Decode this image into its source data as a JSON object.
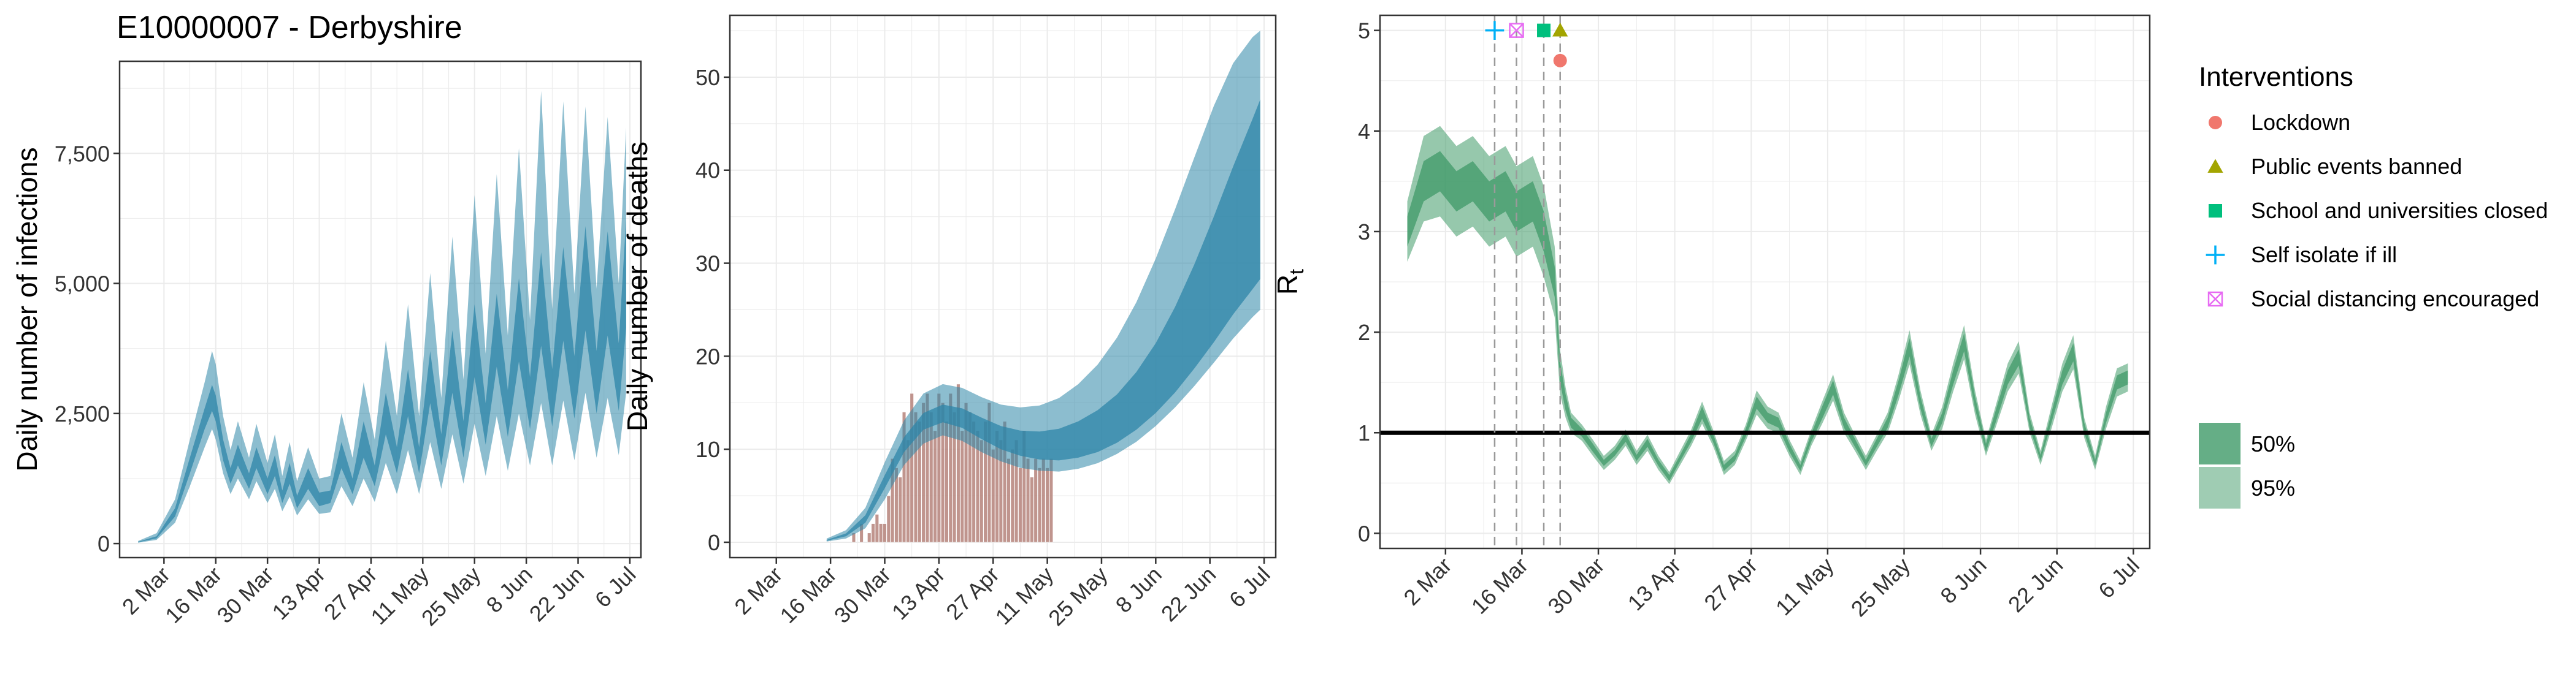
{
  "page_title": "E10000007 - Derbyshire",
  "colors": {
    "infections_fill": "#2e86a8",
    "deaths_fill": "#2e86a8",
    "deaths_bars": "#b5837a",
    "rt_fill": "#3f9a68",
    "intervention_lockdown": "#f0776d",
    "intervention_events": "#a3a500",
    "intervention_schools": "#00bf7d",
    "intervention_self_isolate": "#00b0f6",
    "intervention_social_distancing": "#e76bf3"
  },
  "legend": {
    "title": "Interventions",
    "items": [
      {
        "label": "Lockdown",
        "shape": "circle",
        "color_key": "intervention_lockdown"
      },
      {
        "label": "Public events banned",
        "shape": "triangle",
        "color_key": "intervention_events"
      },
      {
        "label": "School and universities closed",
        "shape": "square",
        "color_key": "intervention_schools"
      },
      {
        "label": "Self isolate if ill",
        "shape": "plus",
        "color_key": "intervention_self_isolate"
      },
      {
        "label": "Social distancing encouraged",
        "shape": "boxed-x",
        "color_key": "intervention_social_distancing"
      }
    ],
    "ci_items": [
      {
        "label": "50%"
      },
      {
        "label": "95%"
      }
    ]
  },
  "chart_data": [
    {
      "type": "area",
      "id": "infections",
      "title": "E10000007 - Derbyshire",
      "xlabel": "",
      "ylabel": "Daily number of infections",
      "xlim": [
        0,
        133
      ],
      "ylim": [
        0,
        9000
      ],
      "yticks": [
        0,
        2500,
        5000,
        7500
      ],
      "ytick_labels": [
        "0",
        "2,500",
        "5,000",
        "7,500"
      ],
      "xticks": [
        7,
        21,
        35,
        49,
        63,
        77,
        91,
        105,
        119,
        133
      ],
      "xtick_labels": [
        "2 Mar",
        "16 Mar",
        "30 Mar",
        "13 Apr",
        "27 Apr",
        "11 May",
        "25 May",
        "8 Jun",
        "22 Jun",
        "6 Jul"
      ],
      "grid": true,
      "x_note": "x = days from 24 Feb 2020",
      "band_x": [
        0,
        5,
        10,
        14,
        18,
        20,
        21,
        23,
        25,
        27,
        30,
        32,
        35,
        37,
        39,
        41,
        43,
        46,
        49,
        52,
        55,
        58,
        61,
        64,
        67,
        70,
        73,
        76,
        79,
        82,
        85,
        88,
        91,
        94,
        97,
        100,
        103,
        106,
        109,
        112,
        115,
        118,
        121,
        124,
        127,
        130,
        132
      ],
      "median": [
        30,
        120,
        600,
        1500,
        2400,
        2800,
        2600,
        1800,
        1300,
        1700,
        1200,
        1650,
        1100,
        1500,
        900,
        1350,
        800,
        1250,
        850,
        900,
        1700,
        1100,
        2000,
        1300,
        2500,
        1600,
        2900,
        1600,
        3200,
        1800,
        3500,
        2000,
        3900,
        2300,
        4100,
        2500,
        4300,
        2700,
        4700,
        2800,
        4800,
        3000,
        5100,
        3100,
        5000,
        3200,
        5200
      ],
      "q50_low": [
        25,
        100,
        520,
        1350,
        2200,
        2550,
        2350,
        1600,
        1150,
        1500,
        1050,
        1450,
        950,
        1300,
        780,
        1150,
        680,
        1050,
        720,
        780,
        1450,
        950,
        1650,
        1100,
        2100,
        1350,
        2450,
        1350,
        2700,
        1500,
        2900,
        1650,
        3200,
        1900,
        3400,
        2050,
        3500,
        2200,
        3800,
        2250,
        3900,
        2400,
        4100,
        2500,
        4000,
        2550,
        4150
      ],
      "q50_high": [
        35,
        140,
        680,
        1650,
        2600,
        3050,
        2850,
        2000,
        1450,
        1900,
        1350,
        1850,
        1250,
        1700,
        1020,
        1550,
        920,
        1450,
        980,
        1020,
        1950,
        1250,
        2350,
        1500,
        2900,
        1850,
        3350,
        1850,
        3700,
        2100,
        4100,
        2350,
        4600,
        2700,
        4800,
        2950,
        5100,
        3200,
        5600,
        3350,
        5700,
        3600,
        6100,
        3700,
        6000,
        3850,
        6250
      ],
      "q95_low": [
        15,
        70,
        400,
        1100,
        1850,
        2200,
        2000,
        1350,
        950,
        1250,
        850,
        1200,
        780,
        1050,
        620,
        900,
        540,
        850,
        570,
        600,
        1100,
        720,
        1250,
        800,
        1550,
        950,
        1800,
        950,
        1950,
        1050,
        2100,
        1150,
        2300,
        1300,
        2450,
        1400,
        2500,
        1500,
        2700,
        1500,
        2750,
        1600,
        2900,
        1650,
        2800,
        1700,
        2900
      ],
      "q95_high": [
        50,
        200,
        850,
        2000,
        3100,
        3700,
        3450,
        2450,
        1800,
        2350,
        1650,
        2300,
        1550,
        2100,
        1300,
        1950,
        1200,
        1850,
        1250,
        1300,
        2500,
        1650,
        3100,
        2000,
        3900,
        2450,
        4600,
        2450,
        5200,
        2800,
        5900,
        3150,
        6700,
        3650,
        7100,
        4000,
        7600,
        4300,
        8700,
        4500,
        8500,
        4800,
        8400,
        4900,
        8200,
        5000,
        8000
      ]
    },
    {
      "type": "bar",
      "id": "deaths",
      "xlabel": "",
      "ylabel": "Daily number of deaths",
      "xlim": [
        0,
        133
      ],
      "ylim": [
        0,
        55
      ],
      "yticks": [
        0,
        10,
        20,
        30,
        40,
        50
      ],
      "ytick_labels": [
        "0",
        "10",
        "20",
        "30",
        "40",
        "50"
      ],
      "xticks": [
        7,
        21,
        35,
        49,
        63,
        77,
        91,
        105,
        119,
        133
      ],
      "xtick_labels": [
        "2 Mar",
        "16 Mar",
        "30 Mar",
        "13 Apr",
        "27 Apr",
        "11 May",
        "25 May",
        "8 Jun",
        "22 Jun",
        "6 Jul"
      ],
      "grid": true,
      "x_note": "x = days from 24 Feb 2020",
      "bars_x": [
        27,
        28,
        29,
        30,
        31,
        32,
        33,
        34,
        35,
        36,
        37,
        38,
        39,
        40,
        41,
        42,
        43,
        44,
        45,
        46,
        47,
        48,
        49,
        50,
        51,
        52,
        53,
        54,
        55,
        56,
        57,
        58,
        59,
        60,
        61,
        62,
        63,
        64,
        65,
        66,
        67,
        68,
        69,
        70,
        71,
        72,
        73,
        74,
        75,
        76,
        77,
        78
      ],
      "bars": [
        1,
        0,
        2,
        0,
        1,
        2,
        3,
        2,
        2,
        5,
        9,
        8,
        7,
        14,
        11,
        16,
        14,
        13,
        15,
        16,
        14,
        12,
        16,
        15,
        13,
        16,
        14,
        17,
        12,
        15,
        14,
        13,
        12,
        11,
        13,
        15,
        10,
        12,
        11,
        13,
        9,
        10,
        11,
        8,
        12,
        9,
        7,
        9,
        8,
        9,
        8,
        9
      ],
      "band_x": [
        20,
        25,
        30,
        35,
        40,
        45,
        50,
        55,
        60,
        65,
        70,
        75,
        80,
        85,
        90,
        95,
        100,
        105,
        110,
        115,
        120,
        125,
        130,
        132
      ],
      "median": [
        0.2,
        0.8,
        2.5,
        6.5,
        10.5,
        13,
        13.8,
        13.3,
        12.2,
        11.2,
        10.6,
        10.3,
        10.4,
        10.9,
        11.8,
        13.2,
        15.1,
        17.6,
        20.8,
        24.5,
        28.7,
        33.2,
        37.5,
        39.2
      ],
      "q50_low": [
        0.15,
        0.65,
        2.1,
        5.8,
        9.7,
        12.1,
        12.9,
        12.3,
        11.1,
        10.0,
        9.3,
        8.9,
        8.8,
        9.1,
        9.7,
        10.7,
        12.1,
        13.9,
        16.1,
        18.7,
        21.5,
        24.5,
        27.2,
        28.3
      ],
      "q50_high": [
        0.25,
        0.95,
        2.9,
        7.2,
        11.3,
        13.9,
        14.8,
        14.4,
        13.4,
        12.5,
        12.0,
        11.9,
        12.2,
        13.0,
        14.2,
        15.9,
        18.3,
        21.4,
        25.3,
        29.9,
        35.0,
        40.4,
        45.5,
        47.6
      ],
      "q95_low": [
        0.08,
        0.4,
        1.5,
        4.6,
        8.3,
        10.6,
        11.5,
        10.9,
        9.7,
        8.7,
        8.0,
        7.7,
        7.6,
        7.9,
        8.5,
        9.5,
        10.8,
        12.5,
        14.5,
        16.8,
        19.3,
        21.9,
        24.2,
        25.0
      ],
      "q95_high": [
        0.4,
        1.3,
        3.7,
        8.6,
        13.1,
        16.0,
        17.0,
        16.6,
        15.6,
        14.8,
        14.5,
        14.7,
        15.5,
        17.0,
        19.1,
        22.0,
        25.8,
        30.5,
        35.8,
        41.4,
        46.9,
        51.5,
        54.3,
        55.0
      ]
    },
    {
      "type": "area",
      "id": "rt",
      "xlabel": "",
      "ylabel": "R",
      "ylabel_subscript": "t",
      "xlim": [
        0,
        133
      ],
      "ylim": [
        0,
        5
      ],
      "yticks": [
        0,
        1,
        2,
        3,
        4,
        5
      ],
      "ytick_labels": [
        "0",
        "1",
        "2",
        "3",
        "4",
        "5"
      ],
      "xticks": [
        7,
        21,
        35,
        49,
        63,
        77,
        91,
        105,
        119,
        133
      ],
      "xtick_labels": [
        "2 Mar",
        "16 Mar",
        "30 Mar",
        "13 Apr",
        "27 Apr",
        "11 May",
        "25 May",
        "8 Jun",
        "22 Jun",
        "6 Jul"
      ],
      "grid": true,
      "x_note": "x = days from 24 Feb 2020",
      "reference_line_y": 1,
      "intervention_lines_x": [
        16,
        20,
        25,
        28
      ],
      "intervention_markers": [
        {
          "x": 16,
          "y": 5.0,
          "shape": "plus",
          "color_key": "intervention_self_isolate"
        },
        {
          "x": 20,
          "y": 5.0,
          "shape": "boxed-x",
          "color_key": "intervention_social_distancing"
        },
        {
          "x": 25,
          "y": 5.0,
          "shape": "square",
          "color_key": "intervention_schools"
        },
        {
          "x": 28,
          "y": 5.0,
          "shape": "triangle",
          "color_key": "intervention_events"
        },
        {
          "x": 28,
          "y": 4.7,
          "shape": "circle",
          "color_key": "intervention_lockdown"
        }
      ],
      "band_x": [
        0,
        3,
        6,
        9,
        12,
        15,
        18,
        20,
        23,
        25,
        27,
        28,
        29,
        30,
        32,
        34,
        36,
        38,
        40,
        42,
        44,
        46,
        48,
        50,
        52,
        54,
        56,
        58,
        60,
        62,
        64,
        66,
        68,
        70,
        72,
        74,
        76,
        78,
        80,
        82,
        84,
        86,
        88,
        90,
        92,
        94,
        96,
        98,
        100,
        102,
        104,
        106,
        108,
        110,
        112,
        114,
        116,
        118,
        120,
        122,
        124,
        126,
        128,
        130,
        132
      ],
      "median": [
        3.0,
        3.5,
        3.6,
        3.4,
        3.5,
        3.3,
        3.4,
        3.2,
        3.3,
        3.0,
        2.5,
        1.6,
        1.3,
        1.1,
        1.0,
        0.85,
        0.7,
        0.8,
        0.95,
        0.75,
        0.9,
        0.7,
        0.55,
        0.75,
        0.95,
        1.2,
        0.95,
        0.65,
        0.75,
        1.0,
        1.3,
        1.15,
        1.1,
        0.85,
        0.65,
        0.95,
        1.2,
        1.45,
        1.1,
        0.9,
        0.7,
        0.9,
        1.1,
        1.45,
        1.85,
        1.3,
        0.9,
        1.15,
        1.55,
        1.9,
        1.3,
        0.85,
        1.2,
        1.55,
        1.75,
        1.1,
        0.75,
        1.15,
        1.55,
        1.8,
        1.05,
        0.7,
        1.15,
        1.5,
        1.55
      ],
      "q50_low": [
        2.85,
        3.3,
        3.4,
        3.2,
        3.3,
        3.1,
        3.2,
        3.0,
        3.1,
        2.8,
        2.35,
        1.5,
        1.22,
        1.05,
        0.96,
        0.81,
        0.67,
        0.77,
        0.91,
        0.72,
        0.86,
        0.67,
        0.52,
        0.72,
        0.91,
        1.14,
        0.91,
        0.62,
        0.72,
        0.96,
        1.24,
        1.1,
        1.05,
        0.81,
        0.62,
        0.91,
        1.14,
        1.38,
        1.05,
        0.86,
        0.67,
        0.86,
        1.05,
        1.38,
        1.76,
        1.24,
        0.86,
        1.1,
        1.48,
        1.81,
        1.24,
        0.81,
        1.14,
        1.48,
        1.67,
        1.05,
        0.72,
        1.1,
        1.48,
        1.71,
        1.0,
        0.67,
        1.1,
        1.43,
        1.48
      ],
      "q50_high": [
        3.15,
        3.7,
        3.8,
        3.6,
        3.7,
        3.5,
        3.6,
        3.4,
        3.5,
        3.2,
        2.65,
        1.7,
        1.38,
        1.15,
        1.04,
        0.89,
        0.73,
        0.83,
        0.99,
        0.78,
        0.94,
        0.73,
        0.58,
        0.78,
        0.99,
        1.26,
        0.99,
        0.68,
        0.78,
        1.04,
        1.36,
        1.2,
        1.15,
        0.89,
        0.68,
        0.99,
        1.26,
        1.52,
        1.15,
        0.94,
        0.73,
        0.94,
        1.15,
        1.52,
        1.94,
        1.36,
        0.94,
        1.2,
        1.62,
        1.99,
        1.36,
        0.89,
        1.26,
        1.62,
        1.83,
        1.15,
        0.78,
        1.2,
        1.62,
        1.89,
        1.1,
        0.73,
        1.2,
        1.57,
        1.62
      ],
      "q95_low": [
        2.7,
        3.1,
        3.15,
        2.95,
        3.05,
        2.85,
        2.95,
        2.75,
        2.85,
        2.55,
        2.15,
        1.38,
        1.15,
        1.0,
        0.92,
        0.77,
        0.63,
        0.73,
        0.87,
        0.68,
        0.82,
        0.63,
        0.49,
        0.68,
        0.87,
        1.09,
        0.87,
        0.58,
        0.68,
        0.92,
        1.18,
        1.04,
        1.0,
        0.77,
        0.58,
        0.87,
        1.09,
        1.32,
        1.0,
        0.82,
        0.63,
        0.82,
        1.0,
        1.32,
        1.68,
        1.18,
        0.82,
        1.04,
        1.41,
        1.73,
        1.18,
        0.77,
        1.09,
        1.41,
        1.59,
        1.0,
        0.68,
        1.04,
        1.41,
        1.63,
        0.95,
        0.63,
        1.04,
        1.36,
        1.41
      ],
      "q95_high": [
        3.3,
        3.95,
        4.05,
        3.85,
        3.95,
        3.75,
        3.85,
        3.65,
        3.75,
        3.45,
        2.85,
        1.82,
        1.45,
        1.2,
        1.08,
        0.93,
        0.77,
        0.87,
        1.03,
        0.82,
        0.98,
        0.77,
        0.61,
        0.82,
        1.03,
        1.31,
        1.03,
        0.72,
        0.82,
        1.08,
        1.42,
        1.26,
        1.2,
        0.93,
        0.72,
        1.03,
        1.31,
        1.58,
        1.2,
        0.98,
        0.77,
        0.98,
        1.2,
        1.58,
        2.02,
        1.42,
        0.98,
        1.26,
        1.69,
        2.07,
        1.42,
        0.93,
        1.31,
        1.69,
        1.91,
        1.2,
        0.82,
        1.26,
        1.69,
        1.97,
        1.15,
        0.77,
        1.26,
        1.64,
        1.69
      ]
    }
  ]
}
